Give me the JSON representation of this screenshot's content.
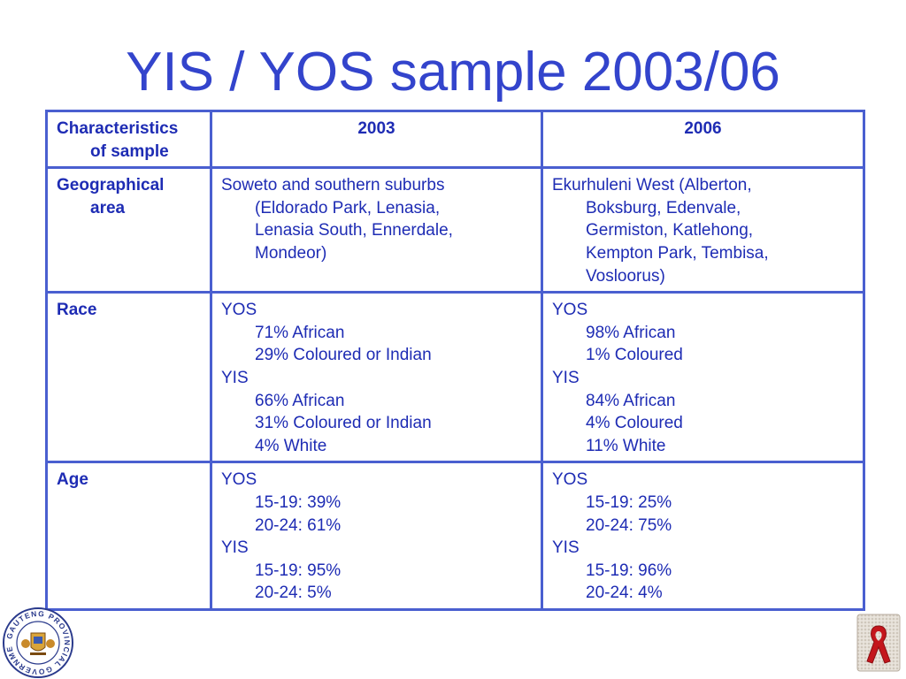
{
  "slide": {
    "title": "YIS / YOS sample 2003/06"
  },
  "table": {
    "header": {
      "label_line1": "Characteristics",
      "label_line2": "of sample",
      "col_2003": "2003",
      "col_2006": "2006"
    },
    "geo": {
      "label_line1": "Geographical",
      "label_line2": "area",
      "y2003": {
        "line1": "Soweto and southern suburbs",
        "lines": [
          "(Eldorado Park, Lenasia,",
          "Lenasia South, Ennerdale,",
          "Mondeor)"
        ]
      },
      "y2006": {
        "line1": "Ekurhuleni West (Alberton,",
        "lines": [
          "Boksburg, Edenvale,",
          "Germiston, Katlehong,",
          "Kempton Park, Tembisa,",
          "Vosloorus)"
        ]
      }
    },
    "race": {
      "label": "Race",
      "y2003": {
        "yos_label": "YOS",
        "yos_items": [
          "71% African",
          "29% Coloured or Indian"
        ],
        "yis_label": "YIS",
        "yis_items": [
          "66% African",
          "31% Coloured or Indian",
          "4% White"
        ]
      },
      "y2006": {
        "yos_label": "YOS",
        "yos_items": [
          "98% African",
          "1% Coloured"
        ],
        "yis_label": "YIS",
        "yis_items": [
          "84% African",
          "4% Coloured",
          "11% White"
        ]
      }
    },
    "age": {
      "label": "Age",
      "y2003": {
        "yos_label": "YOS",
        "yos_items": [
          "15-19: 39%",
          "20-24: 61%"
        ],
        "yis_label": "YIS",
        "yis_items": [
          "15-19: 95%",
          "20-24: 5%"
        ]
      },
      "y2006": {
        "yos_label": "YOS",
        "yos_items": [
          "15-19: 25%",
          "20-24: 75%"
        ],
        "yis_label": "YIS",
        "yis_items": [
          "15-19: 96%",
          "20-24: 4%"
        ]
      }
    }
  },
  "logos": {
    "left": {
      "icon": "gauteng-provincial-government-seal",
      "ring_text": "GAUTENG PROVINCIAL GOVERNMENT"
    },
    "right": {
      "icon": "beaded-red-ribbon"
    }
  }
}
